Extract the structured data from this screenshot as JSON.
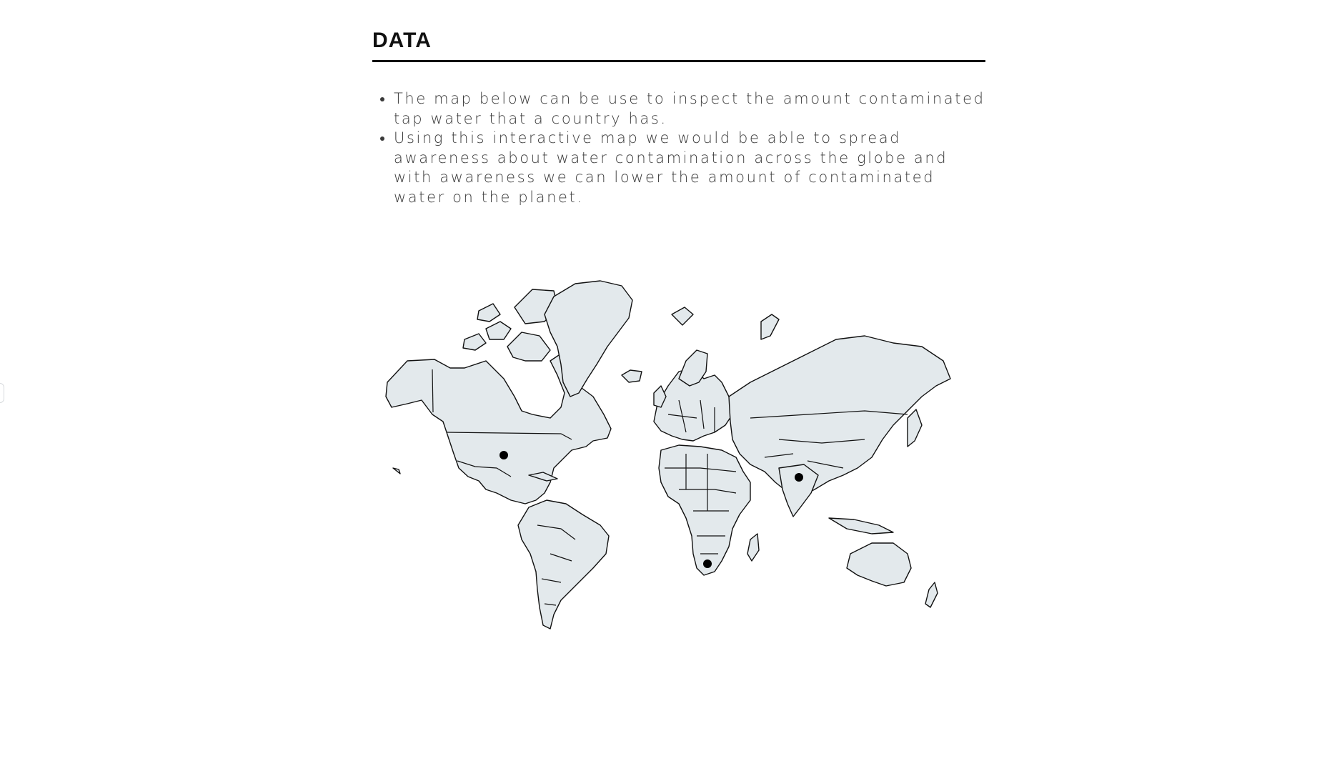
{
  "section": {
    "title": "DATA",
    "bullets": [
      "The map below can be use to inspect the amount contaminated tap water that a country has.",
      "Using this interactive map we would be able to spread awareness about water contamination across the globe and with awareness we can lower the amount of contaminated water on the planet."
    ]
  },
  "map": {
    "land_color": "#e3e9ec",
    "border_color": "#111111",
    "marker_color": "#000000",
    "markers": [
      "United States",
      "India",
      "South Africa"
    ]
  }
}
